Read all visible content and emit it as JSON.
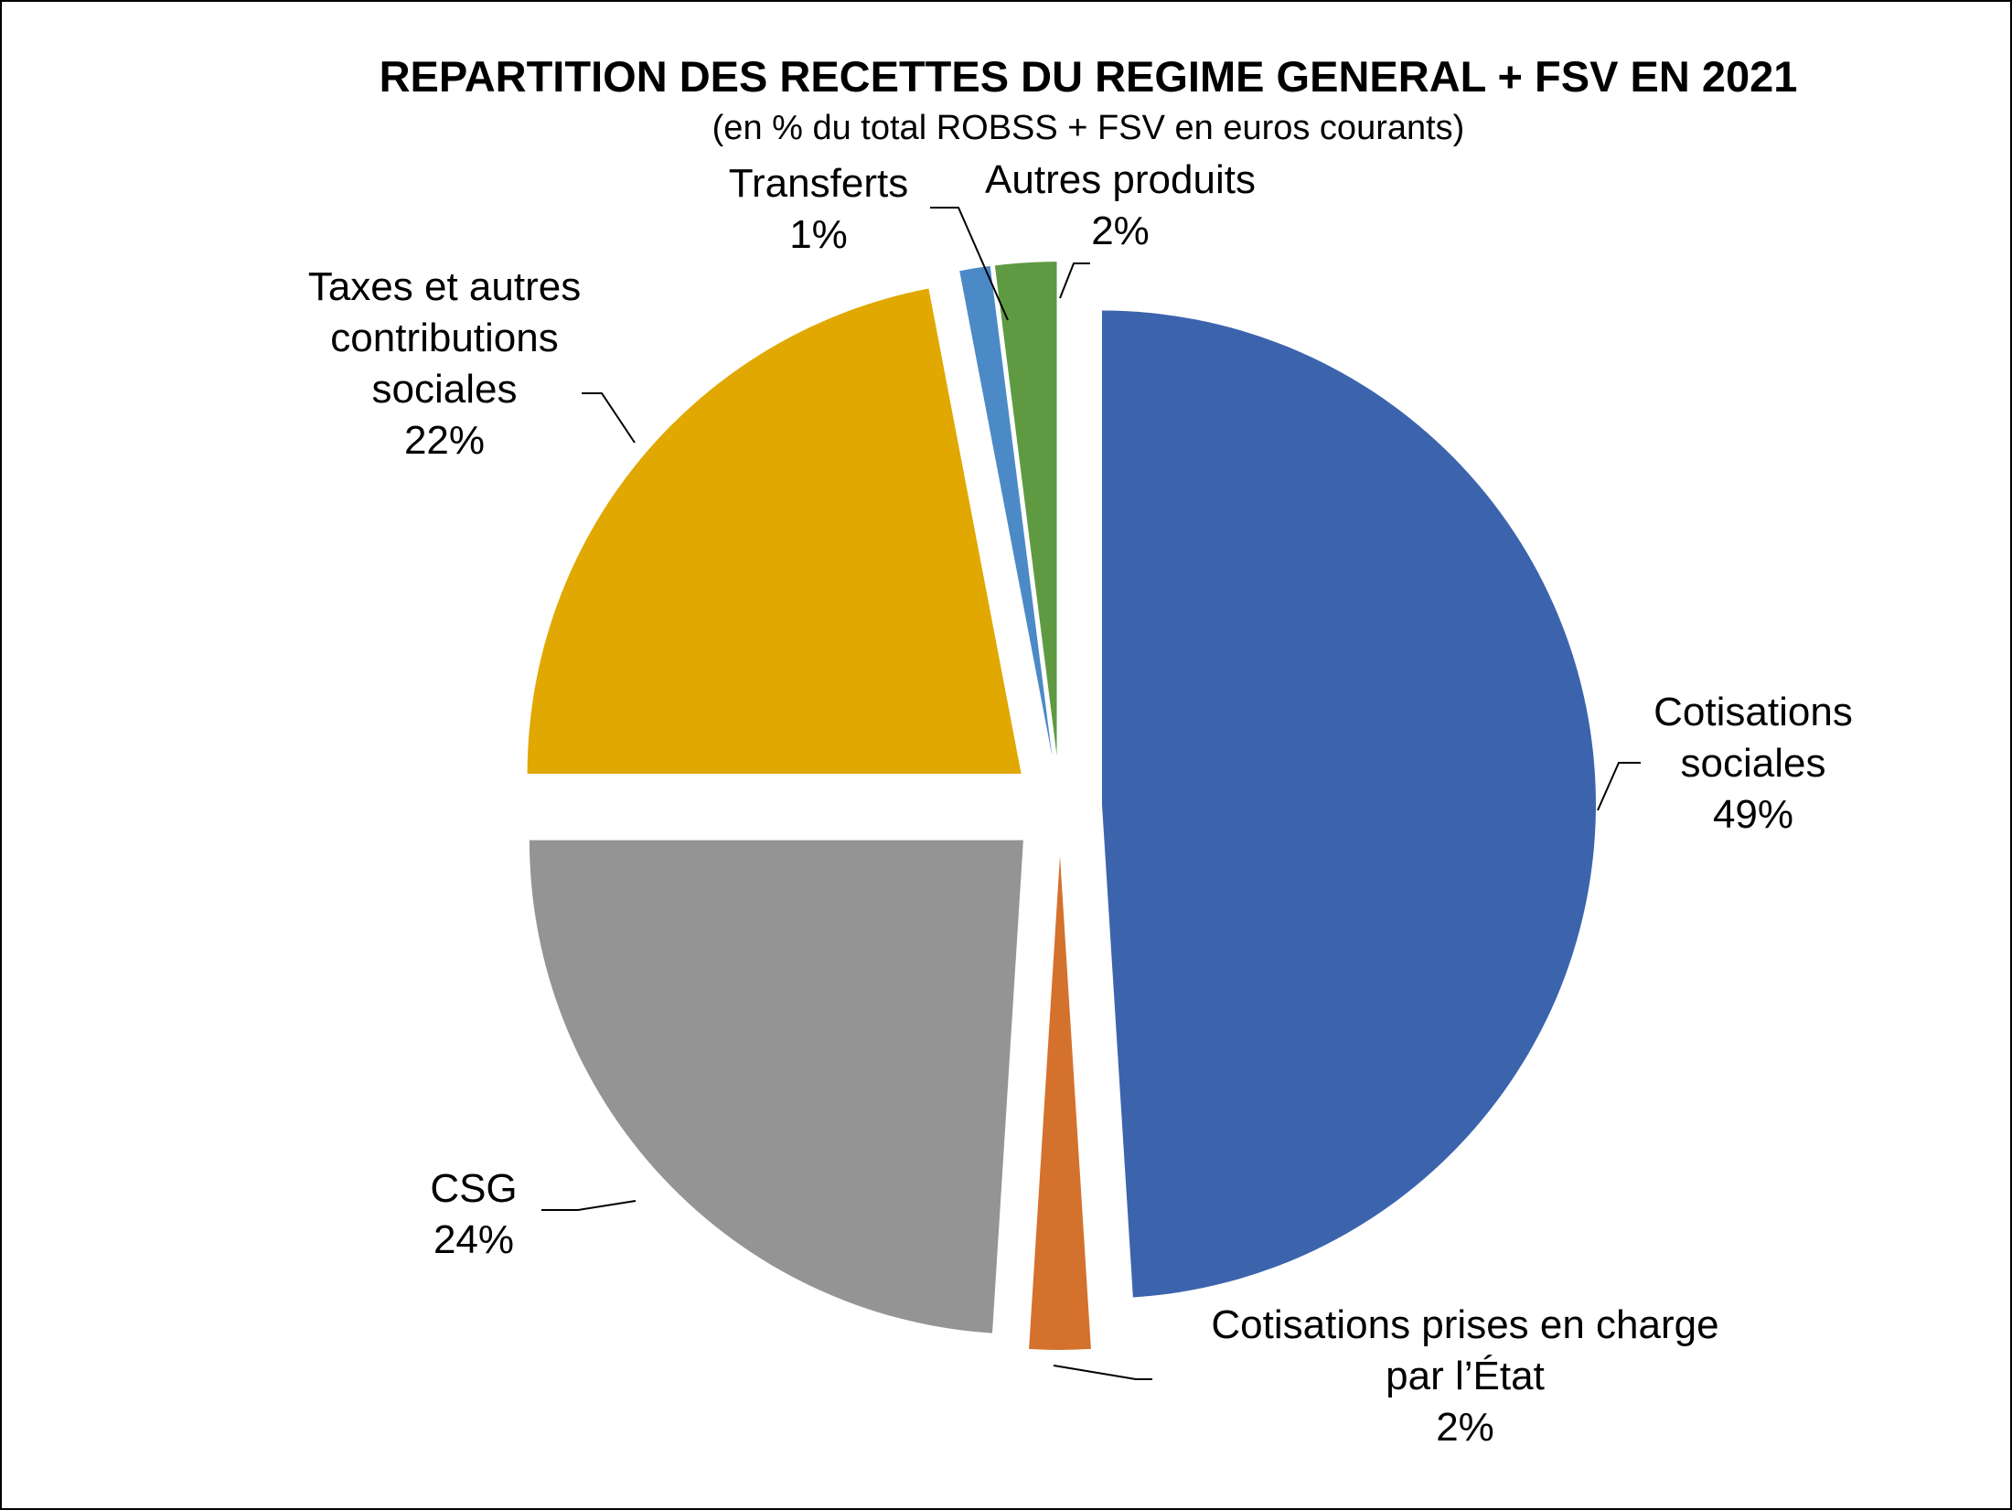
{
  "chart_data": {
    "type": "pie",
    "title": "REPARTITION DES RECETTES DU REGIME GENERAL + FSV EN 2021",
    "subtitle": "(en % du total ROBSS + FSV en euros courants)",
    "slices": [
      {
        "label_lines": [
          "Cotisations",
          "sociales"
        ],
        "value_label": "49%",
        "value": 49,
        "color": "#3C64AD"
      },
      {
        "label_lines": [
          "Cotisations prises en charge",
          "par l’État"
        ],
        "value_label": "2%",
        "value": 2,
        "color": "#D4712D"
      },
      {
        "label_lines": [
          "CSG"
        ],
        "value_label": "24%",
        "value": 24,
        "color": "#949494"
      },
      {
        "label_lines": [
          "Taxes et autres",
          "contributions",
          "sociales"
        ],
        "value_label": "22%",
        "value": 22,
        "color": "#E0A800"
      },
      {
        "label_lines": [
          "Transferts"
        ],
        "value_label": "1%",
        "value": 1,
        "color": "#4B8AC6"
      },
      {
        "label_lines": [
          "Autres produits"
        ],
        "value_label": "2%",
        "value": 2,
        "color": "#5F9A42"
      }
    ]
  }
}
